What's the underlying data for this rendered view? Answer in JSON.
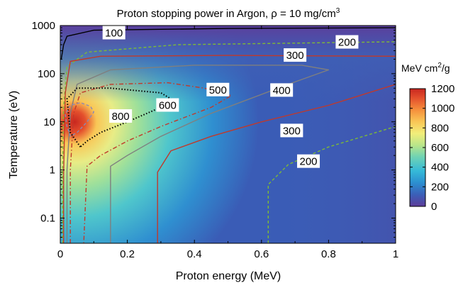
{
  "chart_data": {
    "type": "heatmap",
    "title": "Proton stopping power in Argon, ρ = 10 mg/cm",
    "title_superscript": "3",
    "xlabel": "Proton energy (MeV)",
    "ylabel": "Temperature (eV)",
    "xlim": [
      0,
      1
    ],
    "ylim": [
      0.03,
      1000
    ],
    "y_scale": "log",
    "x_ticks": [
      0,
      0.2,
      0.4,
      0.6,
      0.8,
      1
    ],
    "x_tick_labels": [
      "0",
      "0.2",
      "0.4",
      "0.6",
      "0.8",
      "1"
    ],
    "y_ticks": [
      0.1,
      1,
      10,
      100,
      1000
    ],
    "y_tick_labels": [
      "0.1",
      "1",
      "10",
      "100",
      "1000"
    ],
    "colorbar": {
      "label": "MeV cm",
      "label_superscript": "2",
      "label_suffix": "/g",
      "range": [
        0,
        1200
      ],
      "ticks": [
        0,
        200,
        400,
        600,
        800,
        1000,
        1200
      ],
      "tick_labels": [
        "0",
        "200",
        "400",
        "600",
        "800",
        "1000",
        "1200"
      ],
      "colormap": [
        "#5e3c99",
        "#3b5fb8",
        "#2c8fd0",
        "#35b9d8",
        "#6fd3b4",
        "#b9e58a",
        "#f2ee7a",
        "#f9c656",
        "#f58f3c",
        "#e4502d",
        "#c8271f"
      ]
    },
    "contours": [
      {
        "level": 100,
        "label": "100",
        "color": "#000000",
        "style": "solid",
        "points": [
          [
            0.003,
            200
          ],
          [
            0.01,
            400
          ],
          [
            0.02,
            600
          ],
          [
            0.1,
            800
          ],
          [
            0.5,
            870
          ],
          [
            1.0,
            900
          ]
        ]
      },
      {
        "level": 200,
        "label": "200",
        "color": "#7dbb36",
        "style": "dashed",
        "points": [
          [
            0.007,
            0.03
          ],
          [
            0.007,
            1.0
          ],
          [
            0.01,
            20
          ],
          [
            0.02,
            140
          ],
          [
            0.08,
            280
          ],
          [
            0.35,
            400
          ],
          [
            1.0,
            460
          ]
        ]
      },
      {
        "level": 200,
        "label": "200",
        "color": "#7dbb36",
        "style": "dashed",
        "points": [
          [
            0.62,
            0.03
          ],
          [
            0.62,
            0.5
          ],
          [
            0.68,
            1.3
          ],
          [
            0.8,
            3.0
          ],
          [
            1.0,
            8.0
          ]
        ]
      },
      {
        "level": 300,
        "label": "300",
        "color": "#c0392b",
        "style": "solid",
        "points": [
          [
            0.01,
            0.03
          ],
          [
            0.01,
            0.8
          ],
          [
            0.015,
            40
          ],
          [
            0.03,
            180
          ],
          [
            0.12,
            230
          ],
          [
            0.5,
            240
          ],
          [
            1.0,
            230
          ]
        ]
      },
      {
        "level": 300,
        "label": "300",
        "color": "#c0392b",
        "style": "solid",
        "points": [
          [
            0.29,
            0.03
          ],
          [
            0.29,
            0.9
          ],
          [
            0.33,
            2.5
          ],
          [
            0.45,
            5.0
          ],
          [
            0.6,
            10
          ],
          [
            0.8,
            22
          ],
          [
            1.0,
            60
          ]
        ]
      },
      {
        "level": 400,
        "label": "400",
        "color": "#7f7f7f",
        "style": "solid",
        "points": [
          [
            0.02,
            0.03
          ],
          [
            0.02,
            1.0
          ],
          [
            0.03,
            15
          ],
          [
            0.05,
            60
          ],
          [
            0.15,
            120
          ],
          [
            0.4,
            150
          ],
          [
            0.72,
            150
          ],
          [
            0.8,
            120
          ],
          [
            0.68,
            60
          ],
          [
            0.45,
            15
          ],
          [
            0.3,
            5
          ],
          [
            0.2,
            2
          ],
          [
            0.15,
            1.2
          ],
          [
            0.15,
            0.03
          ]
        ]
      },
      {
        "level": 500,
        "label": "500",
        "color": "#c0392b",
        "style": "dashdot",
        "points": [
          [
            0.03,
            0.03
          ],
          [
            0.03,
            1.0
          ],
          [
            0.04,
            15
          ],
          [
            0.06,
            40
          ],
          [
            0.15,
            60
          ],
          [
            0.32,
            65
          ],
          [
            0.43,
            50
          ],
          [
            0.51,
            35
          ],
          [
            0.45,
            20
          ],
          [
            0.3,
            8
          ],
          [
            0.2,
            4
          ],
          [
            0.12,
            2
          ],
          [
            0.08,
            1.2
          ],
          [
            0.07,
            0.03
          ]
        ]
      },
      {
        "level": 600,
        "label": "600",
        "color": "#000000",
        "style": "dotted",
        "points": [
          [
            0.06,
            3
          ],
          [
            0.03,
            6
          ],
          [
            0.02,
            30
          ],
          [
            0.05,
            50
          ],
          [
            0.15,
            50
          ],
          [
            0.3,
            40
          ],
          [
            0.33,
            30
          ],
          [
            0.3,
            20
          ],
          [
            0.2,
            10
          ],
          [
            0.12,
            6
          ],
          [
            0.08,
            4
          ],
          [
            0.06,
            3
          ]
        ]
      },
      {
        "level": 800,
        "label": "800",
        "color": "#8a8ab5",
        "style": "dashed",
        "points": [
          [
            0.03,
            5
          ],
          [
            0.02,
            8
          ],
          [
            0.015,
            14
          ],
          [
            0.03,
            22
          ],
          [
            0.06,
            25
          ],
          [
            0.09,
            21
          ],
          [
            0.1,
            16
          ],
          [
            0.08,
            10
          ],
          [
            0.05,
            6
          ],
          [
            0.03,
            5
          ]
        ]
      }
    ],
    "contour_labels": [
      {
        "text": "100",
        "x": 0.16,
        "y": 700
      },
      {
        "text": "200",
        "x": 0.855,
        "y": 450
      },
      {
        "text": "300",
        "x": 0.7,
        "y": 240
      },
      {
        "text": "500",
        "x": 0.47,
        "y": 46
      },
      {
        "text": "400",
        "x": 0.66,
        "y": 45
      },
      {
        "text": "600",
        "x": 0.32,
        "y": 22
      },
      {
        "text": "800",
        "x": 0.18,
        "y": 13
      },
      {
        "text": "300",
        "x": 0.69,
        "y": 6.5
      },
      {
        "text": "200",
        "x": 0.74,
        "y": 1.5
      }
    ]
  }
}
